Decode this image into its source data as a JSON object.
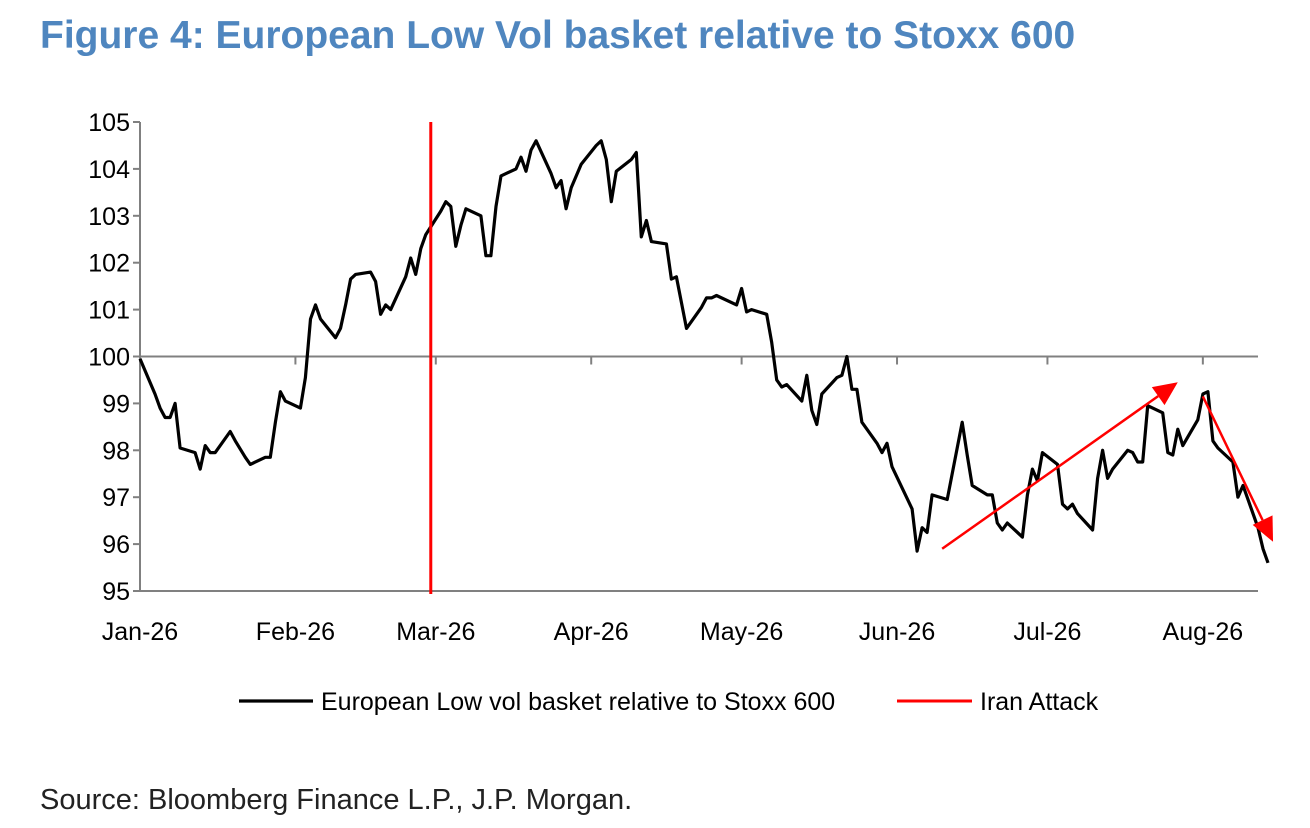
{
  "figure_title": "Figure 4: European Low Vol basket relative to Stoxx 600",
  "source_note": "Source: Bloomberg Finance L.P., J.P. Morgan.",
  "chart_data": {
    "type": "line",
    "title": "Figure 4: European Low Vol basket relative to Stoxx 600",
    "xlabel": "",
    "ylabel": "",
    "ylim": [
      95,
      105
    ],
    "yticks": [
      "95",
      "96",
      "97",
      "98",
      "99",
      "100",
      "101",
      "102",
      "103",
      "104",
      "105"
    ],
    "xlim": [
      "2026-01-01",
      "2026-08-12"
    ],
    "xticks": [
      {
        "label": "Jan-26",
        "date": "2026-01-01"
      },
      {
        "label": "Feb-26",
        "date": "2026-02-01"
      },
      {
        "label": "Mar-26",
        "date": "2026-03-01"
      },
      {
        "label": "Apr-26",
        "date": "2026-04-01"
      },
      {
        "label": "May-26",
        "date": "2026-05-01"
      },
      {
        "label": "Jun-26",
        "date": "2026-06-01"
      },
      {
        "label": "Jul-26",
        "date": "2026-07-01"
      },
      {
        "label": "Aug-26",
        "date": "2026-08-01"
      }
    ],
    "reference_line": 100,
    "grid": false,
    "legend_position": "bottom",
    "series": [
      {
        "name": "European Low vol basket relative to Stoxx 600",
        "color": "#000000",
        "points": [
          [
            "2026-01-01",
            99.95
          ],
          [
            "2026-01-04",
            99.2
          ],
          [
            "2026-01-05",
            98.9
          ],
          [
            "2026-01-06",
            98.7
          ],
          [
            "2026-01-07",
            98.7
          ],
          [
            "2026-01-08",
            99.0
          ],
          [
            "2026-01-09",
            98.05
          ],
          [
            "2026-01-12",
            97.95
          ],
          [
            "2026-01-13",
            97.6
          ],
          [
            "2026-01-14",
            98.1
          ],
          [
            "2026-01-15",
            97.95
          ],
          [
            "2026-01-16",
            97.95
          ],
          [
            "2026-01-19",
            98.4
          ],
          [
            "2026-01-20",
            98.2
          ],
          [
            "2026-01-22",
            97.85
          ],
          [
            "2026-01-23",
            97.7
          ],
          [
            "2026-01-26",
            97.85
          ],
          [
            "2026-01-27",
            97.85
          ],
          [
            "2026-01-28",
            98.6
          ],
          [
            "2026-01-29",
            99.25
          ],
          [
            "2026-01-30",
            99.05
          ],
          [
            "2026-02-02",
            98.9
          ],
          [
            "2026-02-03",
            99.55
          ],
          [
            "2026-02-04",
            100.8
          ],
          [
            "2026-02-05",
            101.1
          ],
          [
            "2026-02-06",
            100.8
          ],
          [
            "2026-02-09",
            100.4
          ],
          [
            "2026-02-10",
            100.6
          ],
          [
            "2026-02-11",
            101.1
          ],
          [
            "2026-02-12",
            101.65
          ],
          [
            "2026-02-13",
            101.75
          ],
          [
            "2026-02-16",
            101.8
          ],
          [
            "2026-02-17",
            101.6
          ],
          [
            "2026-02-18",
            100.9
          ],
          [
            "2026-02-19",
            101.1
          ],
          [
            "2026-02-20",
            101.0
          ],
          [
            "2026-02-23",
            101.7
          ],
          [
            "2026-02-24",
            102.1
          ],
          [
            "2026-02-25",
            101.75
          ],
          [
            "2026-02-26",
            102.3
          ],
          [
            "2026-02-27",
            102.6
          ],
          [
            "2026-03-02",
            103.1
          ],
          [
            "2026-03-03",
            103.3
          ],
          [
            "2026-03-04",
            103.2
          ],
          [
            "2026-03-05",
            102.35
          ],
          [
            "2026-03-06",
            102.8
          ],
          [
            "2026-03-07",
            103.15
          ],
          [
            "2026-03-10",
            103.0
          ],
          [
            "2026-03-11",
            102.15
          ],
          [
            "2026-03-12",
            102.15
          ],
          [
            "2026-03-13",
            103.2
          ],
          [
            "2026-03-14",
            103.85
          ],
          [
            "2026-03-17",
            104.0
          ],
          [
            "2026-03-18",
            104.25
          ],
          [
            "2026-03-19",
            103.95
          ],
          [
            "2026-03-20",
            104.4
          ],
          [
            "2026-03-21",
            104.6
          ],
          [
            "2026-03-24",
            103.9
          ],
          [
            "2026-03-25",
            103.6
          ],
          [
            "2026-03-26",
            103.75
          ],
          [
            "2026-03-27",
            103.15
          ],
          [
            "2026-03-28",
            103.6
          ],
          [
            "2026-03-30",
            104.1
          ],
          [
            "2026-04-02",
            104.5
          ],
          [
            "2026-04-03",
            104.6
          ],
          [
            "2026-04-04",
            104.2
          ],
          [
            "2026-04-05",
            103.3
          ],
          [
            "2026-04-06",
            103.95
          ],
          [
            "2026-04-09",
            104.2
          ],
          [
            "2026-04-10",
            104.35
          ],
          [
            "2026-04-11",
            102.55
          ],
          [
            "2026-04-12",
            102.9
          ],
          [
            "2026-04-13",
            102.45
          ],
          [
            "2026-04-16",
            102.4
          ],
          [
            "2026-04-17",
            101.65
          ],
          [
            "2026-04-18",
            101.7
          ],
          [
            "2026-04-20",
            100.6
          ],
          [
            "2026-04-23",
            101.05
          ],
          [
            "2026-04-24",
            101.25
          ],
          [
            "2026-04-25",
            101.25
          ],
          [
            "2026-04-26",
            101.3
          ],
          [
            "2026-04-30",
            101.1
          ],
          [
            "2026-05-01",
            101.45
          ],
          [
            "2026-05-02",
            100.95
          ],
          [
            "2026-05-03",
            101.0
          ],
          [
            "2026-05-06",
            100.9
          ],
          [
            "2026-05-07",
            100.3
          ],
          [
            "2026-05-08",
            99.5
          ],
          [
            "2026-05-09",
            99.35
          ],
          [
            "2026-05-10",
            99.4
          ],
          [
            "2026-05-13",
            99.05
          ],
          [
            "2026-05-14",
            99.6
          ],
          [
            "2026-05-15",
            98.85
          ],
          [
            "2026-05-16",
            98.55
          ],
          [
            "2026-05-17",
            99.2
          ],
          [
            "2026-05-20",
            99.55
          ],
          [
            "2026-05-21",
            99.6
          ],
          [
            "2026-05-22",
            100.0
          ],
          [
            "2026-05-23",
            99.3
          ],
          [
            "2026-05-24",
            99.3
          ],
          [
            "2026-05-25",
            98.6
          ],
          [
            "2026-05-28",
            98.15
          ],
          [
            "2026-05-29",
            97.95
          ],
          [
            "2026-05-30",
            98.15
          ],
          [
            "2026-05-31",
            97.65
          ],
          [
            "2026-06-04",
            96.75
          ],
          [
            "2026-06-05",
            95.85
          ],
          [
            "2026-06-06",
            96.35
          ],
          [
            "2026-06-07",
            96.25
          ],
          [
            "2026-06-08",
            97.05
          ],
          [
            "2026-06-11",
            96.95
          ],
          [
            "2026-06-14",
            98.6
          ],
          [
            "2026-06-15",
            97.9
          ],
          [
            "2026-06-16",
            97.25
          ],
          [
            "2026-06-19",
            97.05
          ],
          [
            "2026-06-20",
            97.05
          ],
          [
            "2026-06-21",
            96.45
          ],
          [
            "2026-06-22",
            96.3
          ],
          [
            "2026-06-23",
            96.45
          ],
          [
            "2026-06-26",
            96.15
          ],
          [
            "2026-06-27",
            97.05
          ],
          [
            "2026-06-28",
            97.6
          ],
          [
            "2026-06-29",
            97.35
          ],
          [
            "2026-06-30",
            97.95
          ],
          [
            "2026-07-03",
            97.7
          ],
          [
            "2026-07-04",
            96.85
          ],
          [
            "2026-07-05",
            96.75
          ],
          [
            "2026-07-06",
            96.85
          ],
          [
            "2026-07-07",
            96.65
          ],
          [
            "2026-07-10",
            96.3
          ],
          [
            "2026-07-11",
            97.4
          ],
          [
            "2026-07-12",
            98.0
          ],
          [
            "2026-07-13",
            97.4
          ],
          [
            "2026-07-14",
            97.6
          ],
          [
            "2026-07-17",
            98.0
          ],
          [
            "2026-07-18",
            97.95
          ],
          [
            "2026-07-19",
            97.75
          ],
          [
            "2026-07-20",
            97.75
          ],
          [
            "2026-07-21",
            98.95
          ],
          [
            "2026-07-24",
            98.8
          ],
          [
            "2026-07-25",
            97.95
          ],
          [
            "2026-07-26",
            97.9
          ],
          [
            "2026-07-27",
            98.45
          ],
          [
            "2026-07-28",
            98.1
          ],
          [
            "2026-07-31",
            98.65
          ],
          [
            "2026-08-01",
            99.2
          ],
          [
            "2026-08-02",
            99.25
          ],
          [
            "2026-08-03",
            98.2
          ],
          [
            "2026-08-04",
            98.05
          ],
          [
            "2026-08-07",
            97.75
          ],
          [
            "2026-08-08",
            97.0
          ],
          [
            "2026-08-09",
            97.25
          ],
          [
            "2026-08-10",
            96.95
          ],
          [
            "2026-08-12",
            96.35
          ],
          [
            "2026-08-13",
            95.9
          ],
          [
            "2026-08-14",
            95.6
          ]
        ]
      }
    ],
    "reference_lines": [
      {
        "name": "Iran Attack",
        "color": "#ff0000",
        "date": "2026-02-28"
      }
    ],
    "annotations": [
      {
        "type": "arrow",
        "color": "#ff0000",
        "from": [
          "2026-06-10",
          95.9
        ],
        "to": [
          "2026-07-27",
          99.45
        ]
      },
      {
        "type": "arrow",
        "color": "#ff0000",
        "from": [
          "2026-08-01",
          99.15
        ],
        "to": [
          "2026-08-15",
          96.05
        ]
      }
    ]
  }
}
